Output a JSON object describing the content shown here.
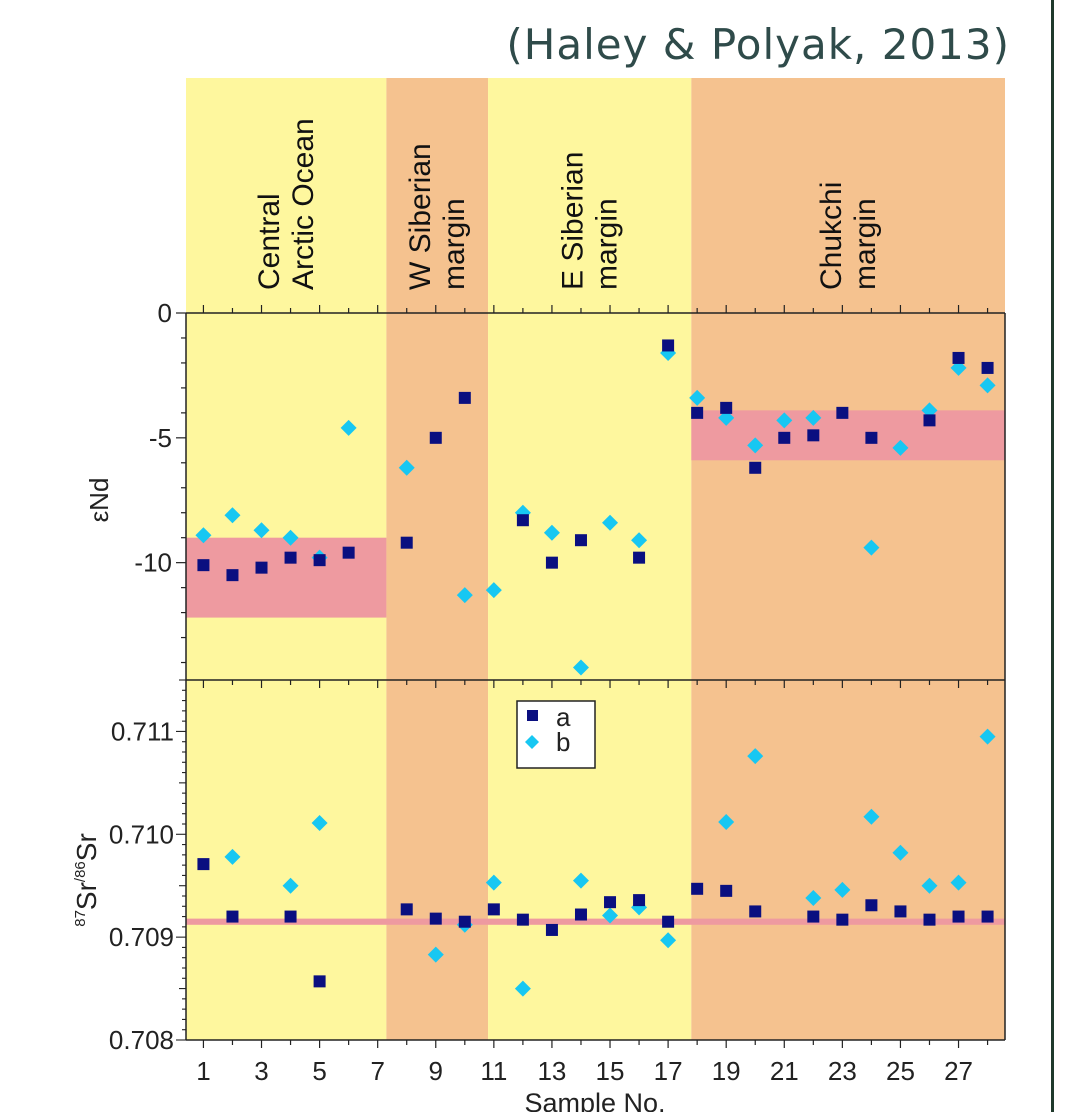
{
  "citation": "(Haley & Polyak, 2013)",
  "colors": {
    "yellow": "#fef79e",
    "orange": "#f5c28f",
    "pink_band": "#ee9aa0",
    "series_a": "#0a0f80",
    "series_b": "#17c7f2",
    "axis": "#222222"
  },
  "chart_data": [
    {
      "type": "scatter",
      "ylabel": "εNd",
      "ylim": [
        -14.7,
        0
      ],
      "yticks": [
        0,
        -5,
        -10
      ],
      "xlim": [
        0.4,
        28.6
      ],
      "regions": [
        {
          "label_lines": [
            "Central",
            "Arctic Ocean"
          ],
          "x_start": 0.4,
          "x_end": 7.3,
          "fill": "yellow",
          "band": [
            -9.0,
            -12.2
          ]
        },
        {
          "label_lines": [
            "W Siberian",
            "margin"
          ],
          "x_start": 7.3,
          "x_end": 10.8,
          "fill": "orange",
          "band": null
        },
        {
          "label_lines": [
            "E Siberian",
            "margin"
          ],
          "x_start": 10.8,
          "x_end": 17.8,
          "fill": "yellow",
          "band": null
        },
        {
          "label_lines": [
            "Chukchi",
            "margin"
          ],
          "x_start": 17.8,
          "x_end": 28.6,
          "fill": "orange",
          "band": [
            -3.9,
            -5.9
          ]
        }
      ],
      "series": [
        {
          "name": "a",
          "marker": "square",
          "points": [
            [
              1,
              -10.1
            ],
            [
              2,
              -10.5
            ],
            [
              3,
              -10.2
            ],
            [
              4,
              -9.8
            ],
            [
              5,
              -9.9
            ],
            [
              6,
              -9.6
            ],
            [
              8,
              -9.2
            ],
            [
              9,
              -5.0
            ],
            [
              10,
              -3.4
            ],
            [
              12,
              -8.3
            ],
            [
              13,
              -10.0
            ],
            [
              14,
              -9.1
            ],
            [
              16,
              -9.8
            ],
            [
              17,
              -1.3
            ],
            [
              18,
              -4.0
            ],
            [
              19,
              -3.8
            ],
            [
              20,
              -6.2
            ],
            [
              21,
              -5.0
            ],
            [
              22,
              -4.9
            ],
            [
              23,
              -4.0
            ],
            [
              24,
              -5.0
            ],
            [
              26,
              -4.3
            ],
            [
              27,
              -1.8
            ],
            [
              28,
              -2.2
            ]
          ]
        },
        {
          "name": "b",
          "marker": "diamond",
          "points": [
            [
              1,
              -8.9
            ],
            [
              2,
              -8.1
            ],
            [
              3,
              -8.7
            ],
            [
              4,
              -9.0
            ],
            [
              5,
              -9.8
            ],
            [
              6,
              -4.6
            ],
            [
              8,
              -6.2
            ],
            [
              10,
              -11.3
            ],
            [
              11,
              -11.1
            ],
            [
              12,
              -8.0
            ],
            [
              13,
              -8.8
            ],
            [
              14,
              -14.2
            ],
            [
              15,
              -8.4
            ],
            [
              16,
              -9.1
            ],
            [
              17,
              -1.6
            ],
            [
              18,
              -3.4
            ],
            [
              19,
              -4.2
            ],
            [
              20,
              -5.3
            ],
            [
              21,
              -4.3
            ],
            [
              22,
              -4.2
            ],
            [
              24,
              -9.4
            ],
            [
              25,
              -5.4
            ],
            [
              26,
              -3.9
            ],
            [
              27,
              -2.2
            ],
            [
              28,
              -2.9
            ]
          ]
        }
      ]
    },
    {
      "type": "scatter",
      "ylabel_sup1": "87",
      "ylabel_main1": "Sr",
      "ylabel_sup2": "/86",
      "ylabel_main2": "Sr",
      "ylim": [
        0.708,
        0.7115
      ],
      "yticks": [
        0.708,
        0.709,
        0.71,
        0.711
      ],
      "ytick_labels": [
        "0.708",
        "0.709",
        "0.710",
        "0.711"
      ],
      "xlim": [
        0.4,
        28.6
      ],
      "xlabel": "Sample No.",
      "xticks": [
        1,
        3,
        5,
        7,
        9,
        11,
        13,
        15,
        17,
        19,
        21,
        23,
        25,
        27
      ],
      "band": [
        0.70912,
        0.70918
      ],
      "legend": {
        "position": "top-center",
        "entries": [
          "a",
          "b"
        ]
      },
      "series": [
        {
          "name": "a",
          "marker": "square",
          "points": [
            [
              1,
              0.70971
            ],
            [
              2,
              0.7092
            ],
            [
              4,
              0.7092
            ],
            [
              5,
              0.70857
            ],
            [
              8,
              0.70927
            ],
            [
              9,
              0.70918
            ],
            [
              10,
              0.70915
            ],
            [
              11,
              0.70927
            ],
            [
              12,
              0.70917
            ],
            [
              13,
              0.70907
            ],
            [
              14,
              0.70922
            ],
            [
              15,
              0.70934
            ],
            [
              16,
              0.70936
            ],
            [
              17,
              0.70915
            ],
            [
              18,
              0.70947
            ],
            [
              19,
              0.70945
            ],
            [
              20,
              0.70925
            ],
            [
              22,
              0.7092
            ],
            [
              23,
              0.70917
            ],
            [
              24,
              0.70931
            ],
            [
              25,
              0.70925
            ],
            [
              26,
              0.70917
            ],
            [
              27,
              0.7092
            ],
            [
              28,
              0.7092
            ]
          ]
        },
        {
          "name": "b",
          "marker": "diamond",
          "points": [
            [
              2,
              0.70978
            ],
            [
              4,
              0.7095
            ],
            [
              5,
              0.71011
            ],
            [
              9,
              0.70883
            ],
            [
              10,
              0.70912
            ],
            [
              11,
              0.70953
            ],
            [
              12,
              0.7085
            ],
            [
              14,
              0.70955
            ],
            [
              15,
              0.70921
            ],
            [
              16,
              0.70929
            ],
            [
              17,
              0.70897
            ],
            [
              19,
              0.71012
            ],
            [
              20,
              0.71076
            ],
            [
              22,
              0.70938
            ],
            [
              23,
              0.70946
            ],
            [
              24,
              0.71017
            ],
            [
              25,
              0.70982
            ],
            [
              26,
              0.7095
            ],
            [
              27,
              0.70953
            ],
            [
              28,
              0.71095
            ]
          ]
        }
      ]
    }
  ]
}
